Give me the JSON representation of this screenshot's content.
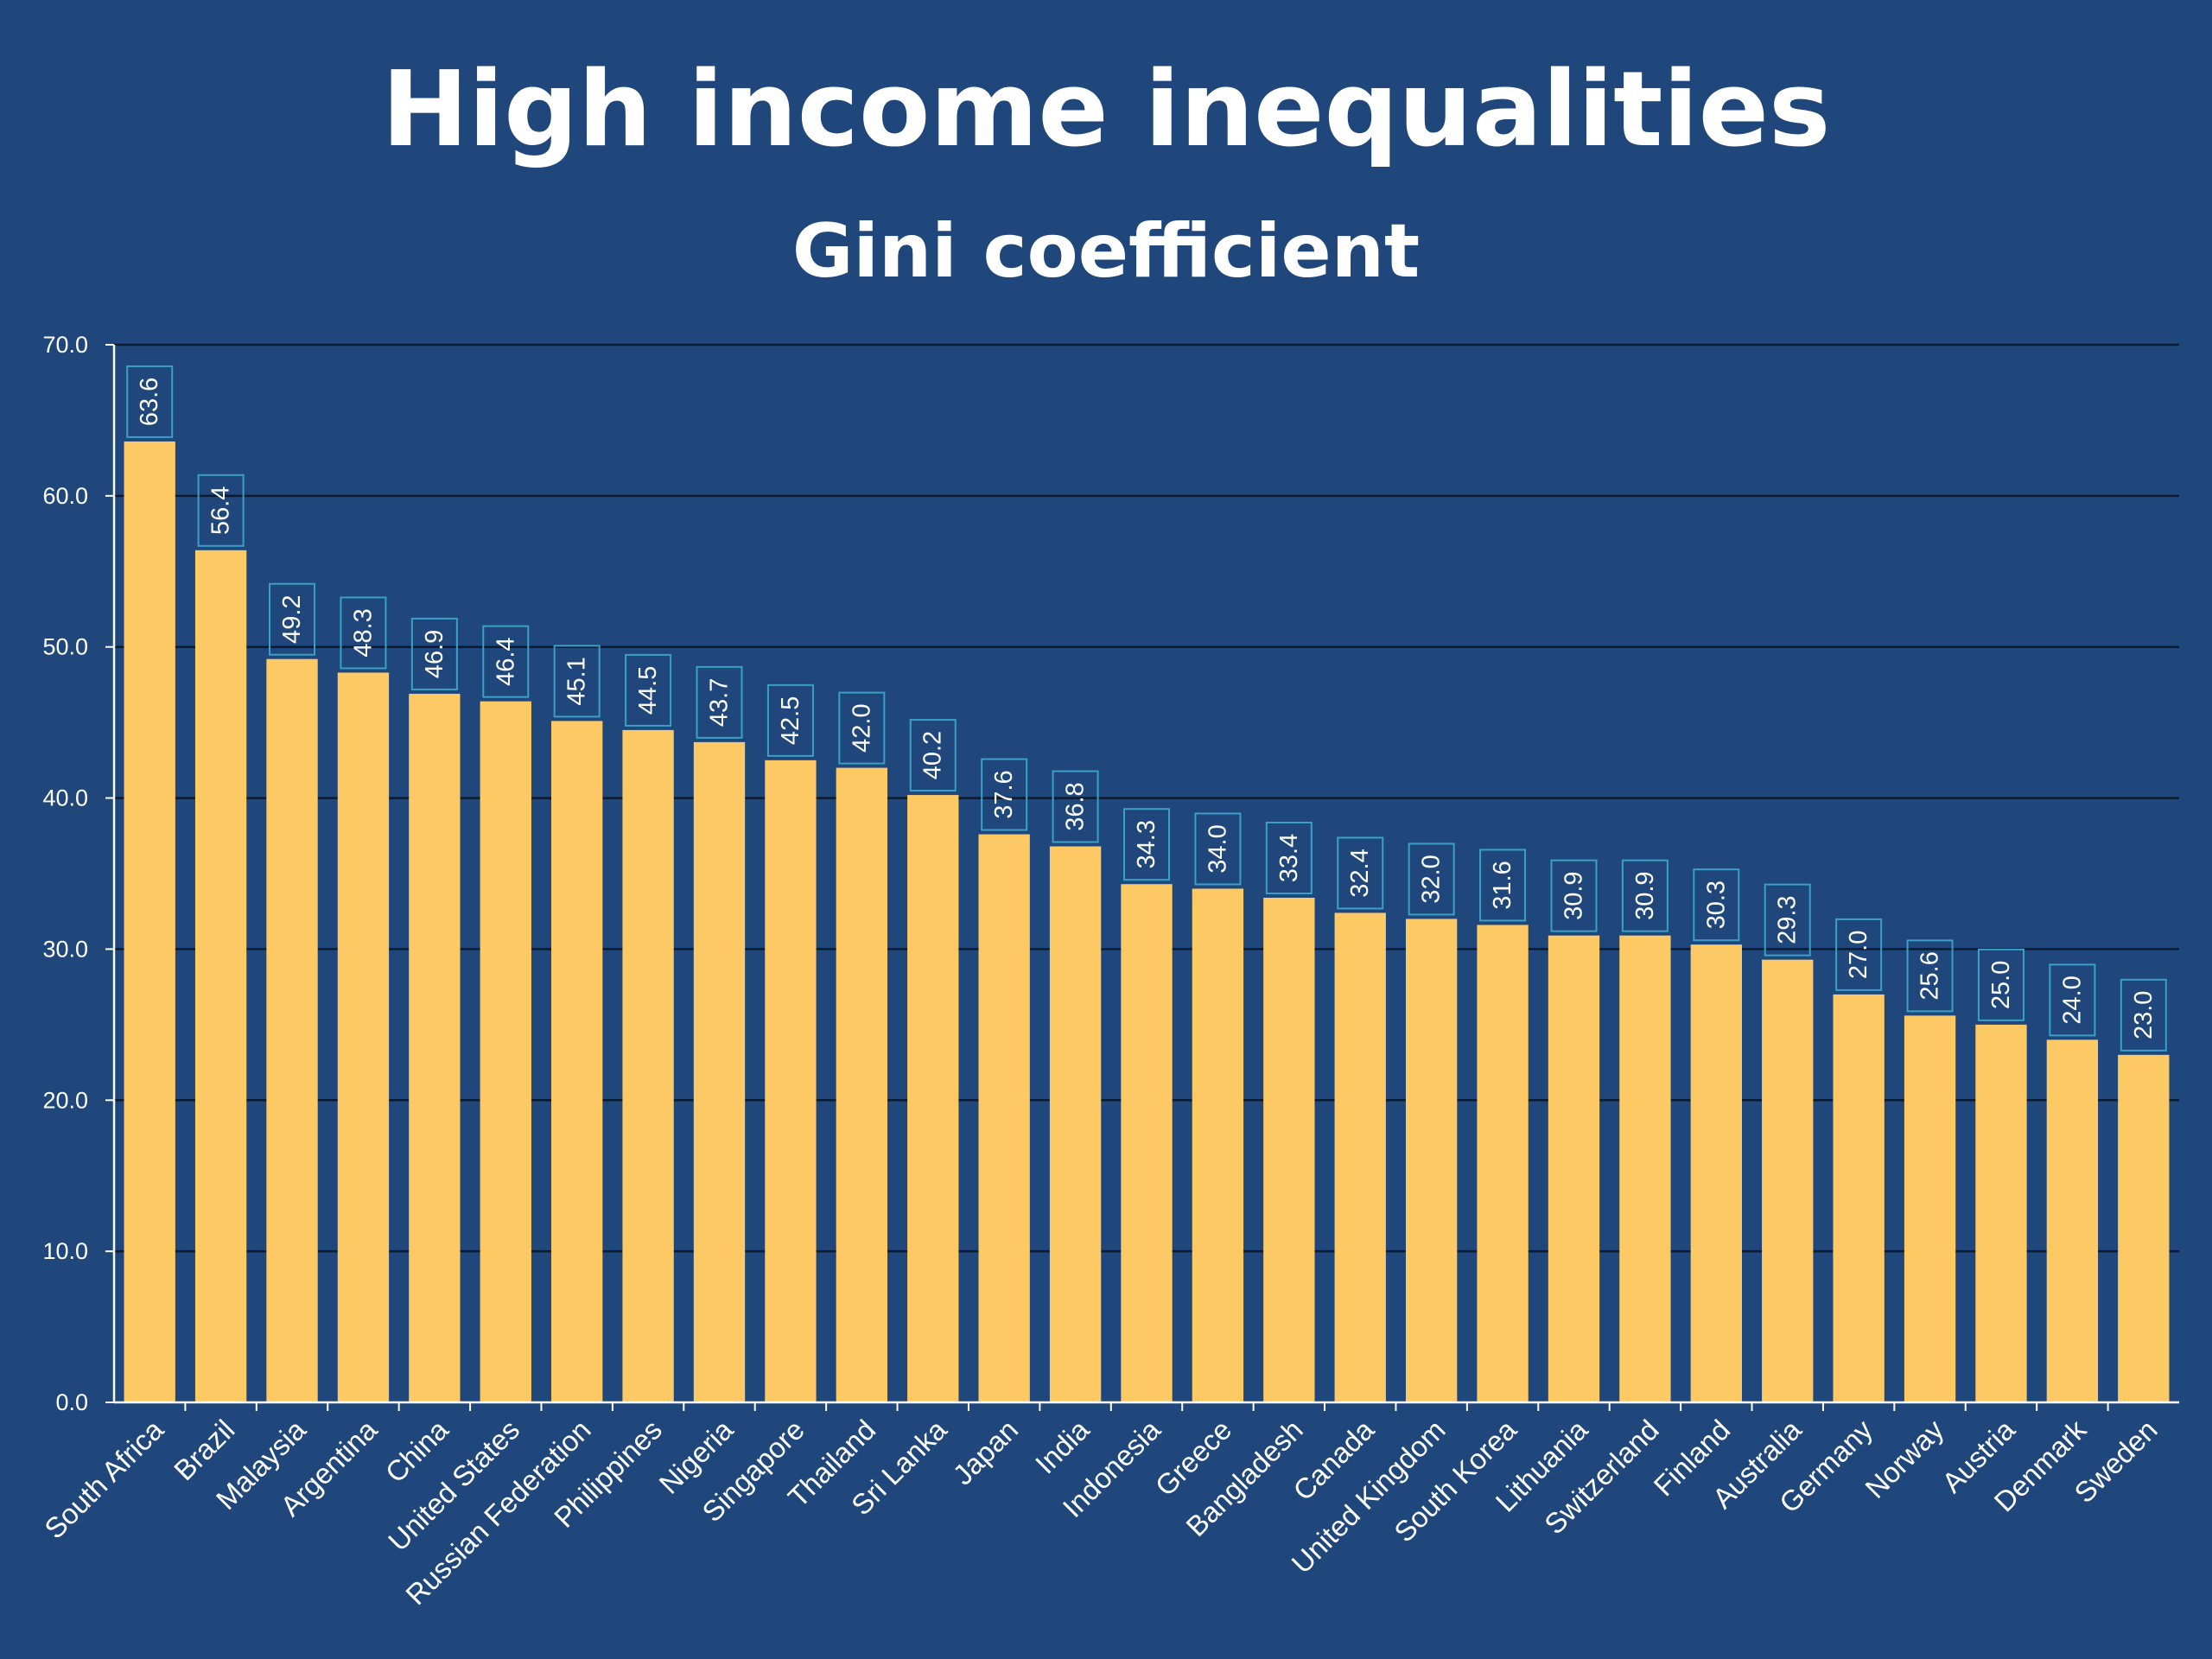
{
  "colors": {
    "background": "#1f477b",
    "bar": "#fdc964",
    "label_box_border": "#3aa0c8",
    "grid": "#0b1a30",
    "text": "#ffffff"
  },
  "chart_data": {
    "type": "bar",
    "title": "High income inequalities",
    "subtitle": "Gini coefficient",
    "xlabel": "",
    "ylabel": "",
    "ylim": [
      0,
      70
    ],
    "yticks": [
      "0.0",
      "10.0",
      "20.0",
      "30.0",
      "40.0",
      "50.0",
      "60.0",
      "70.0"
    ],
    "grid": true,
    "legend": "none",
    "categories": [
      "South Africa",
      "Brazil",
      "Malaysia",
      "Argentina",
      "China",
      "United States",
      "Russian Federation",
      "Philippines",
      "Nigeria",
      "Singapore",
      "Thailand",
      "Sri Lanka",
      "Japan",
      "India",
      "Indonesia",
      "Greece",
      "Bangladesh",
      "Canada",
      "United Kingdom",
      "South Korea",
      "Lithuania",
      "Switzerland",
      "Finland",
      "Australia",
      "Germany",
      "Norway",
      "Austria",
      "Denmark",
      "Sweden"
    ],
    "values": [
      63.6,
      56.4,
      49.2,
      48.3,
      46.9,
      46.4,
      45.1,
      44.5,
      43.7,
      42.5,
      42.0,
      40.2,
      37.6,
      36.8,
      34.3,
      34.0,
      33.4,
      32.4,
      32.0,
      31.6,
      30.9,
      30.9,
      30.3,
      29.3,
      27.0,
      25.6,
      25.0,
      24.0,
      23.0
    ],
    "value_labels": [
      "63.6",
      "56.4",
      "49.2",
      "48.3",
      "46.9",
      "46.4",
      "45.1",
      "44.5",
      "43.7",
      "42.5",
      "42.0",
      "40.2",
      "37.6",
      "36.8",
      "34.3",
      "34.0",
      "33.4",
      "32.4",
      "32.0",
      "31.6",
      "30.9",
      "30.9",
      "30.3",
      "29.3",
      "27.0",
      "25.6",
      "25.0",
      "24.0",
      "23.0"
    ]
  }
}
